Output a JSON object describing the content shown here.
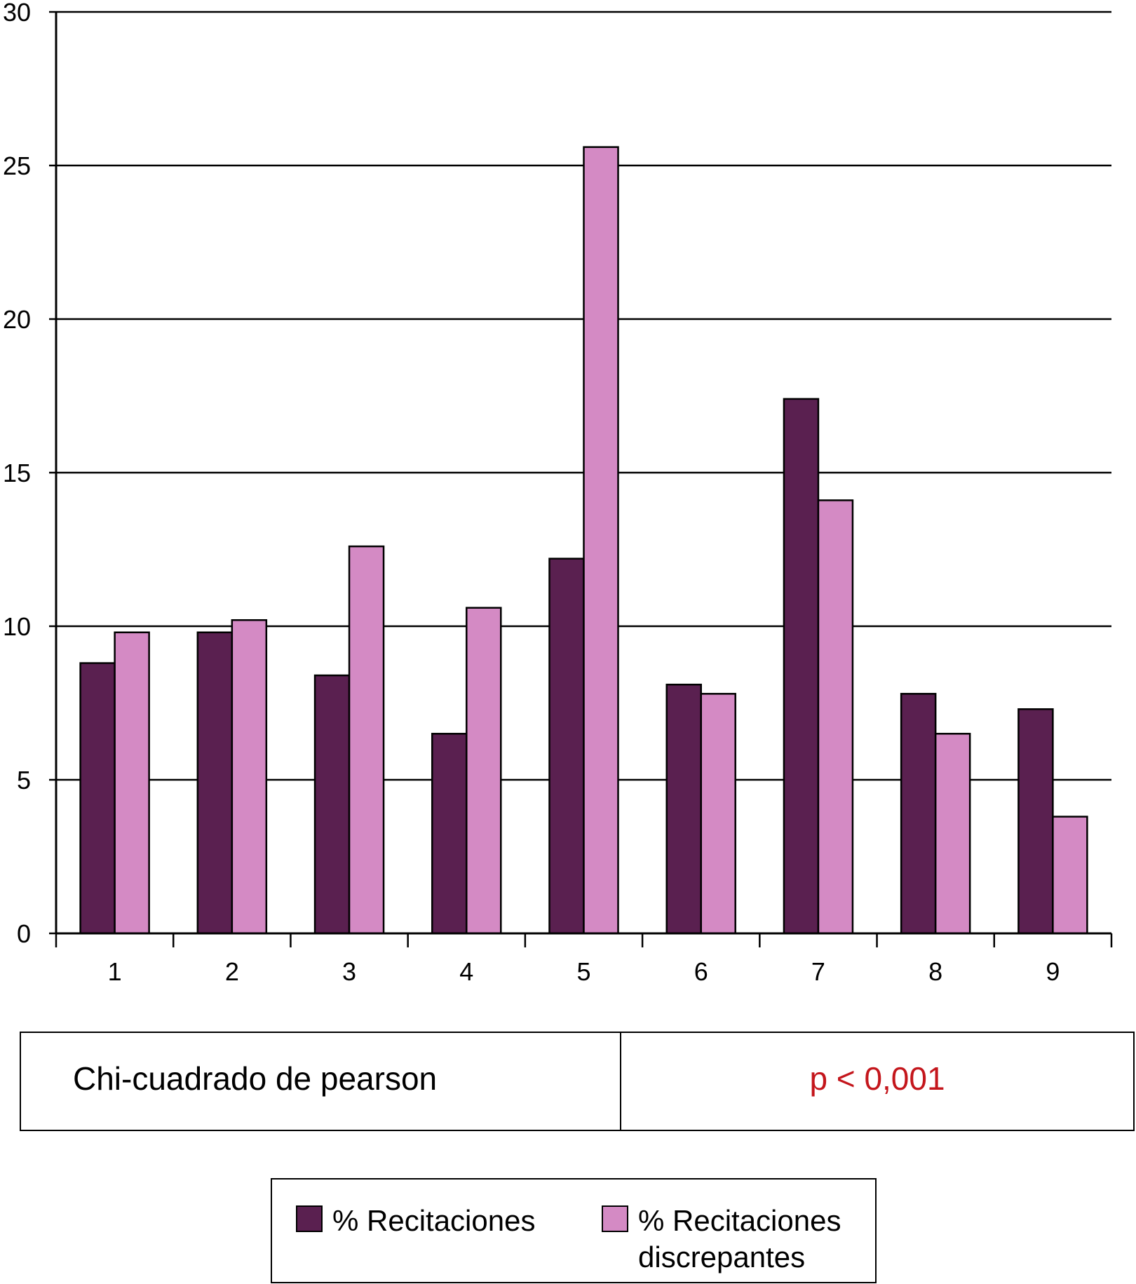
{
  "chart_data": {
    "type": "bar",
    "categories": [
      "1",
      "2",
      "3",
      "4",
      "5",
      "6",
      "7",
      "8",
      "9"
    ],
    "series": [
      {
        "name": "% Recitaciones",
        "color": "#5a2050",
        "values": [
          8.8,
          9.8,
          8.4,
          6.5,
          12.2,
          8.1,
          17.4,
          7.8,
          7.3
        ]
      },
      {
        "name": "% Recitaciones discrepantes",
        "color": "#d48ac4",
        "values": [
          9.8,
          10.2,
          12.6,
          10.6,
          25.6,
          7.8,
          14.1,
          6.5,
          3.8
        ]
      }
    ],
    "title": "",
    "xlabel": "",
    "ylabel": "",
    "ylim": [
      0,
      30
    ],
    "yticks": [
      "0",
      "5",
      "10",
      "15",
      "20",
      "25",
      "30"
    ],
    "grid": true,
    "legend_position": "bottom"
  },
  "stats": {
    "label": "Chi-cuadrado de pearson",
    "value": "p < 0,001",
    "value_color": "#c4161c"
  },
  "legend": {
    "items": [
      {
        "label": "% Recitaciones",
        "color": "#5a2050"
      },
      {
        "label": "% Recitaciones discrepantes",
        "color": "#d48ac4"
      }
    ]
  }
}
